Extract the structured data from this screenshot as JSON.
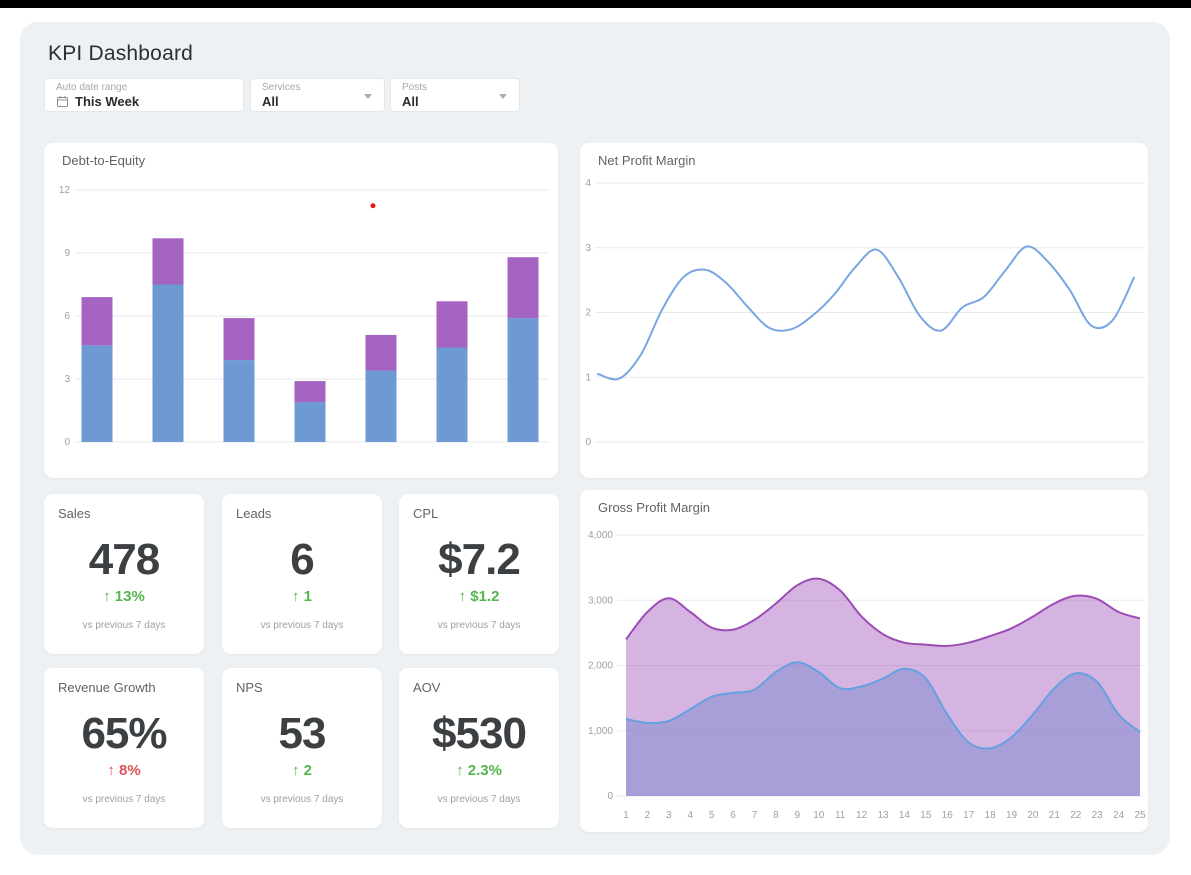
{
  "page": {
    "title": "KPI Dashboard"
  },
  "filters": {
    "date_range": {
      "label": "Auto date range",
      "value": "This Week",
      "icon": "calendar-icon"
    },
    "services": {
      "label": "Services",
      "value": "All",
      "icon": "chevron-down-icon"
    },
    "posts": {
      "label": "Posts",
      "value": "All",
      "icon": "chevron-down-icon"
    }
  },
  "colors": {
    "green": "#56b54e",
    "red": "#e0515a",
    "bar_blue": "#6d9ad2",
    "bar_purple": "#a563c2",
    "line_blue": "#79a6e2",
    "area_purple_stroke": "#9d4bb5",
    "area_blue_stroke": "#64a1e0",
    "marker_red": "#ee1111",
    "gridline": "#e9eaec",
    "tick_text": "#9aa0a6"
  },
  "kpi_cards": [
    {
      "title": "Sales",
      "value": "478",
      "delta": "↑ 13%",
      "delta_color": "green",
      "note": "vs previous 7 days"
    },
    {
      "title": "Leads",
      "value": "6",
      "delta": "↑ 1",
      "delta_color": "green",
      "note": "vs previous 7 days"
    },
    {
      "title": "CPL",
      "value": "$7.2",
      "delta": "↑ $1.2",
      "delta_color": "green",
      "note": "vs previous 7 days"
    },
    {
      "title": "Revenue Growth",
      "value": "65%",
      "delta": "↑ 8%",
      "delta_color": "red",
      "note": "vs previous 7 days"
    },
    {
      "title": "NPS",
      "value": "53",
      "delta": "↑ 2",
      "delta_color": "green",
      "note": "vs previous 7 days"
    },
    {
      "title": "AOV",
      "value": "$530",
      "delta": "↑ 2.3%",
      "delta_color": "green",
      "note": "vs previous 7 days"
    }
  ],
  "chart_data": [
    {
      "id": "debt_to_equity",
      "type": "bar",
      "stacked": true,
      "title": "Debt-to-Equity",
      "categories": [
        "",
        "",
        "",
        "",
        "",
        "",
        ""
      ],
      "series": [
        {
          "name": "lower-segment",
          "color": "#6d9ad2",
          "values": [
            4.6,
            7.5,
            3.9,
            1.9,
            3.4,
            4.5,
            5.9
          ]
        },
        {
          "name": "upper-segment",
          "color": "#a563c2",
          "values": [
            2.3,
            2.2,
            2.0,
            1.0,
            1.7,
            2.2,
            2.9
          ]
        }
      ],
      "stack_totals": [
        6.9,
        9.7,
        5.9,
        2.9,
        5.1,
        6.7,
        8.8
      ],
      "ylim": [
        0,
        12
      ],
      "yticks": [
        "0",
        "3",
        "6",
        "9",
        "12"
      ],
      "grid": true,
      "legend": "none",
      "point_marker": {
        "x_frac": 0.63,
        "value": 11.25,
        "color": "#ee1111"
      }
    },
    {
      "id": "net_profit_margin",
      "type": "line",
      "title": "Net Profit Margin",
      "color": "#79a6e2",
      "values": [
        1.05,
        0.98,
        1.35,
        2.05,
        2.55,
        2.66,
        2.45,
        2.08,
        1.76,
        1.74,
        1.95,
        2.27,
        2.7,
        2.97,
        2.55,
        1.95,
        1.72,
        2.08,
        2.24,
        2.65,
        3.02,
        2.78,
        2.35,
        1.8,
        1.88,
        2.54
      ],
      "ylim": [
        0,
        4
      ],
      "yticks": [
        "0",
        "1",
        "2",
        "3",
        "4"
      ],
      "grid": true,
      "legend": "none"
    },
    {
      "id": "gross_profit_margin",
      "type": "area",
      "title": "Gross Profit Margin",
      "x": [
        1,
        2,
        3,
        4,
        5,
        6,
        7,
        8,
        9,
        10,
        11,
        12,
        13,
        14,
        15,
        16,
        17,
        18,
        19,
        20,
        21,
        22,
        23,
        24,
        25
      ],
      "series": [
        {
          "name": "upper-area",
          "stroke": "#9d4bb5",
          "fill": "rgba(162,88,189,0.45)",
          "values": [
            2400,
            2820,
            3030,
            2820,
            2580,
            2550,
            2700,
            2950,
            3230,
            3330,
            3150,
            2750,
            2480,
            2350,
            2320,
            2300,
            2350,
            2450,
            2570,
            2750,
            2950,
            3070,
            3020,
            2820,
            2720
          ]
        },
        {
          "name": "lower-area",
          "stroke": "#64a1e0",
          "fill": "rgba(90,120,200,0.35)",
          "values": [
            1180,
            1120,
            1150,
            1330,
            1520,
            1580,
            1630,
            1900,
            2050,
            1900,
            1650,
            1680,
            1800,
            1950,
            1800,
            1250,
            820,
            730,
            900,
            1250,
            1650,
            1880,
            1750,
            1250,
            980
          ]
        }
      ],
      "ylim": [
        0,
        4000
      ],
      "yticks": [
        "0",
        "1,000",
        "2,000",
        "3,000",
        "4,000"
      ],
      "grid": true,
      "legend": "none"
    }
  ]
}
